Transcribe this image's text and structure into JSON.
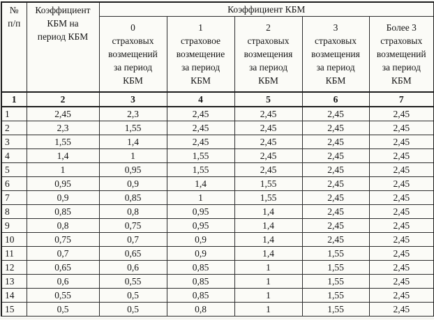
{
  "document": {
    "kind": "scanned-coefficient-table",
    "language": "ru",
    "colors": {
      "paper": "#fbfbf7",
      "border": "#1c1c1c",
      "text": "#141414"
    },
    "table": {
      "header": {
        "col_no": "№\nп/п",
        "col_kbm_period": "Коэффициент\nКБМ на\nпериод КБМ",
        "span_title": "Коэффициент КБМ",
        "claim_columns": [
          "0\nстраховых\nвозмещений\nза период\nКБМ",
          "1\nстраховое\nвозмещение\nза период\nКБМ",
          "2\nстраховых\nвозмещения\nза период\nКБМ",
          "3\nстраховых\nвозмещения\nза период\nКБМ",
          "Более 3\nстраховых\nвозмещений\nза период\nКБМ"
        ],
        "column_numbers": [
          "1",
          "2",
          "3",
          "4",
          "5",
          "6",
          "7"
        ]
      },
      "rows": [
        [
          "1",
          "2,45",
          "2,3",
          "2,45",
          "2,45",
          "2,45",
          "2,45"
        ],
        [
          "2",
          "2,3",
          "1,55",
          "2,45",
          "2,45",
          "2,45",
          "2,45"
        ],
        [
          "3",
          "1,55",
          "1,4",
          "2,45",
          "2,45",
          "2,45",
          "2,45"
        ],
        [
          "4",
          "1,4",
          "1",
          "1,55",
          "2,45",
          "2,45",
          "2,45"
        ],
        [
          "5",
          "1",
          "0,95",
          "1,55",
          "2,45",
          "2,45",
          "2,45"
        ],
        [
          "6",
          "0,95",
          "0,9",
          "1,4",
          "1,55",
          "2,45",
          "2,45"
        ],
        [
          "7",
          "0,9",
          "0,85",
          "1",
          "1,55",
          "2,45",
          "2,45"
        ],
        [
          "8",
          "0,85",
          "0,8",
          "0,95",
          "1,4",
          "2,45",
          "2,45"
        ],
        [
          "9",
          "0,8",
          "0,75",
          "0,95",
          "1,4",
          "2,45",
          "2,45"
        ],
        [
          "10",
          "0,75",
          "0,7",
          "0,9",
          "1,4",
          "2,45",
          "2,45"
        ],
        [
          "11",
          "0,7",
          "0,65",
          "0,9",
          "1,4",
          "1,55",
          "2,45"
        ],
        [
          "12",
          "0,65",
          "0,6",
          "0,85",
          "1",
          "1,55",
          "2,45"
        ],
        [
          "13",
          "0,6",
          "0,55",
          "0,85",
          "1",
          "1,55",
          "2,45"
        ],
        [
          "14",
          "0,55",
          "0,5",
          "0,85",
          "1",
          "1,55",
          "2,45"
        ],
        [
          "15",
          "0,5",
          "0,5",
          "0,8",
          "1",
          "1,55",
          "2,45"
        ]
      ]
    }
  }
}
